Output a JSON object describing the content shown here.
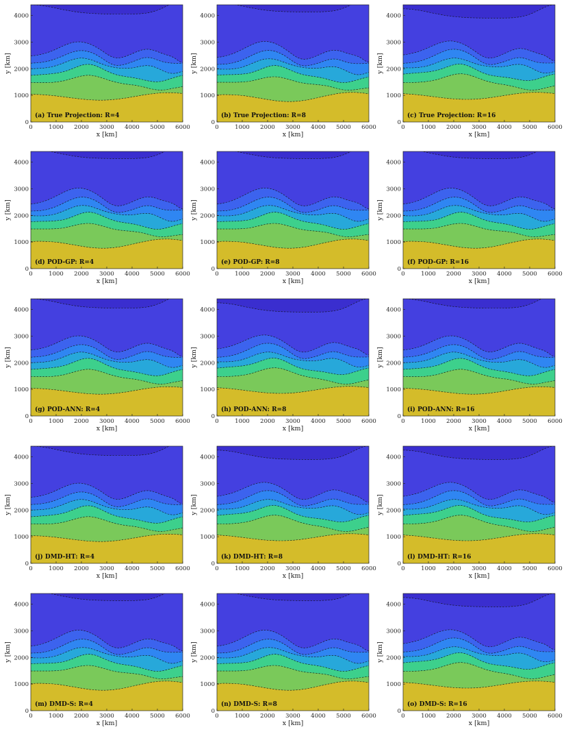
{
  "colors": {
    "levels": [
      "#d4bc2a",
      "#7ac95a",
      "#3dd08c",
      "#27a8da",
      "#2f86f2",
      "#3c63ee",
      "#4440e0",
      "#3a2ecf"
    ],
    "contour_line": "#111111",
    "axis": "#262626"
  },
  "chart_data": [
    {
      "type": "contour",
      "label": "(a) True Projection: R=4",
      "xlabel": "x [km]",
      "ylabel": "y [km]",
      "xlim": [
        0,
        6000
      ],
      "ylim": [
        0,
        4400
      ],
      "xticks": [
        "0",
        "1000",
        "2000",
        "3000",
        "4000",
        "5000",
        "6000"
      ],
      "yticks": [
        "0",
        "1000",
        "2000",
        "3000",
        "4000"
      ],
      "variant": 0
    },
    {
      "type": "contour",
      "label": "(b) True Projection: R=8",
      "xlabel": "x [km]",
      "ylabel": "y [km]",
      "xlim": [
        0,
        6000
      ],
      "ylim": [
        0,
        4400
      ],
      "xticks": [
        "0",
        "1000",
        "2000",
        "3000",
        "4000",
        "5000",
        "6000"
      ],
      "yticks": [
        "0",
        "1000",
        "2000",
        "3000",
        "4000"
      ],
      "variant": 1
    },
    {
      "type": "contour",
      "label": "(c) True Projection: R=16",
      "xlabel": "x [km]",
      "ylabel": "y [km]",
      "xlim": [
        0,
        6000
      ],
      "ylim": [
        0,
        4400
      ],
      "xticks": [
        "0",
        "1000",
        "2000",
        "3000",
        "4000",
        "5000",
        "6000"
      ],
      "yticks": [
        "0",
        "1000",
        "2000",
        "3000",
        "4000"
      ],
      "variant": 2
    },
    {
      "type": "contour",
      "label": "(d) POD-GP: R=4",
      "xlabel": "x [km]",
      "ylabel": "y [km]",
      "xlim": [
        0,
        6000
      ],
      "ylim": [
        0,
        4400
      ],
      "xticks": [
        "0",
        "1000",
        "2000",
        "3000",
        "4000",
        "5000",
        "6000"
      ],
      "yticks": [
        "0",
        "1000",
        "2000",
        "3000",
        "4000"
      ],
      "variant": 1
    },
    {
      "type": "contour",
      "label": "(e) POD-GP: R=8",
      "xlabel": "x [km]",
      "ylabel": "y [km]",
      "xlim": [
        0,
        6000
      ],
      "ylim": [
        0,
        4400
      ],
      "xticks": [
        "0",
        "1000",
        "2000",
        "3000",
        "4000",
        "5000",
        "6000"
      ],
      "yticks": [
        "0",
        "1000",
        "2000",
        "3000",
        "4000"
      ],
      "variant": 1
    },
    {
      "type": "contour",
      "label": "(f) POD-GP: R=16",
      "xlabel": "x [km]",
      "ylabel": "y [km]",
      "xlim": [
        0,
        6000
      ],
      "ylim": [
        0,
        4400
      ],
      "xticks": [
        "0",
        "1000",
        "2000",
        "3000",
        "4000",
        "5000",
        "6000"
      ],
      "yticks": [
        "0",
        "1000",
        "2000",
        "3000",
        "4000"
      ],
      "variant": 1
    },
    {
      "type": "contour",
      "label": "(g) POD-ANN: R=4",
      "xlabel": "x [km]",
      "ylabel": "y [km]",
      "xlim": [
        0,
        6000
      ],
      "ylim": [
        0,
        4400
      ],
      "xticks": [
        "0",
        "1000",
        "2000",
        "3000",
        "4000",
        "5000",
        "6000"
      ],
      "yticks": [
        "0",
        "1000",
        "2000",
        "3000",
        "4000"
      ],
      "variant": 0
    },
    {
      "type": "contour",
      "label": "(h) POD-ANN: R=8",
      "xlabel": "x [km]",
      "ylabel": "y [km]",
      "xlim": [
        0,
        6000
      ],
      "ylim": [
        0,
        4400
      ],
      "xticks": [
        "0",
        "1000",
        "2000",
        "3000",
        "4000",
        "5000",
        "6000"
      ],
      "yticks": [
        "0",
        "1000",
        "2000",
        "3000",
        "4000"
      ],
      "variant": 2
    },
    {
      "type": "contour",
      "label": "(i) POD-ANN: R=16",
      "xlabel": "x [km]",
      "ylabel": "y [km]",
      "xlim": [
        0,
        6000
      ],
      "ylim": [
        0,
        4400
      ],
      "xticks": [
        "0",
        "1000",
        "2000",
        "3000",
        "4000",
        "5000",
        "6000"
      ],
      "yticks": [
        "0",
        "1000",
        "2000",
        "3000",
        "4000"
      ],
      "variant": 0
    },
    {
      "type": "contour",
      "label": "(j) DMD-HT: R=4",
      "xlabel": "x [km]",
      "ylabel": "y [km]",
      "xlim": [
        0,
        6000
      ],
      "ylim": [
        0,
        4400
      ],
      "xticks": [
        "0",
        "1000",
        "2000",
        "3000",
        "4000",
        "5000",
        "6000"
      ],
      "yticks": [
        "0",
        "1000",
        "2000",
        "3000",
        "4000"
      ],
      "variant": 0
    },
    {
      "type": "contour",
      "label": "(k) DMD-HT: R=8",
      "xlabel": "x [km]",
      "ylabel": "y [km]",
      "xlim": [
        0,
        6000
      ],
      "ylim": [
        0,
        4400
      ],
      "xticks": [
        "0",
        "1000",
        "2000",
        "3000",
        "4000",
        "5000",
        "6000"
      ],
      "yticks": [
        "0",
        "1000",
        "2000",
        "3000",
        "4000"
      ],
      "variant": 2
    },
    {
      "type": "contour",
      "label": "(l) DMD-HT: R=16",
      "xlabel": "x [km]",
      "ylabel": "y [km]",
      "xlim": [
        0,
        6000
      ],
      "ylim": [
        0,
        4400
      ],
      "xticks": [
        "0",
        "1000",
        "2000",
        "3000",
        "4000",
        "5000",
        "6000"
      ],
      "yticks": [
        "0",
        "1000",
        "2000",
        "3000",
        "4000"
      ],
      "variant": 2
    },
    {
      "type": "contour",
      "label": "(m) DMD-S: R=4",
      "xlabel": "x [km]",
      "ylabel": "y [km]",
      "xlim": [
        0,
        6000
      ],
      "ylim": [
        0,
        4400
      ],
      "xticks": [
        "0",
        "1000",
        "2000",
        "3000",
        "4000",
        "5000",
        "6000"
      ],
      "yticks": [
        "0",
        "1000",
        "2000",
        "3000",
        "4000"
      ],
      "variant": 1
    },
    {
      "type": "contour",
      "label": "(n) DMD-S: R=8",
      "xlabel": "x [km]",
      "ylabel": "y [km]",
      "xlim": [
        0,
        6000
      ],
      "ylim": [
        0,
        4400
      ],
      "xticks": [
        "0",
        "1000",
        "2000",
        "3000",
        "4000",
        "5000",
        "6000"
      ],
      "yticks": [
        "0",
        "1000",
        "2000",
        "3000",
        "4000"
      ],
      "variant": 1
    },
    {
      "type": "contour",
      "label": "(o) DMD-S: R=16",
      "xlabel": "x [km]",
      "ylabel": "y [km]",
      "xlim": [
        0,
        6000
      ],
      "ylim": [
        0,
        4400
      ],
      "xticks": [
        "0",
        "1000",
        "2000",
        "3000",
        "4000",
        "5000",
        "6000"
      ],
      "yticks": [
        "0",
        "1000",
        "2000",
        "3000",
        "4000"
      ],
      "variant": 2
    }
  ]
}
